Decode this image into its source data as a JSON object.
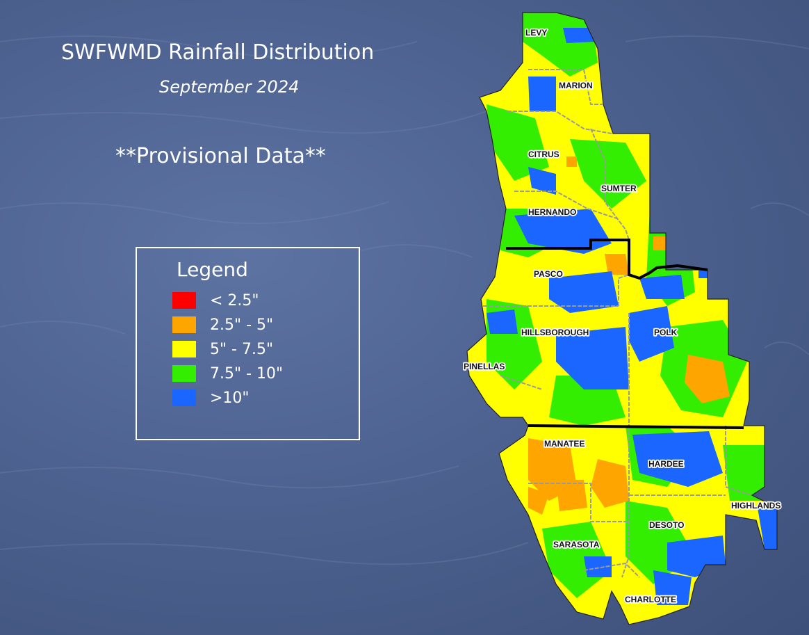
{
  "title": "SWFWMD Rainfall Distribution",
  "subtitle": "September 2024",
  "note": "**Provisional Data**",
  "legend": {
    "title": "Legend",
    "items": [
      {
        "label": "< 2.5\"",
        "color": "#ff0000"
      },
      {
        "label": "2.5\" - 5\"",
        "color": "#ffa500"
      },
      {
        "label": "5\" - 7.5\"",
        "color": "#ffff00"
      },
      {
        "label": "7.5\" - 10\"",
        "color": "#33ee00"
      },
      {
        "label": ">10\"",
        "color": "#1a66ff"
      }
    ]
  },
  "counties": [
    "LEVY",
    "MARION",
    "CITRUS",
    "SUMTER",
    "HERNANDO",
    "PASCO",
    "HILLSBOROUGH",
    "POLK",
    "PINELLAS",
    "MANATEE",
    "HARDEE",
    "HIGHLANDS",
    "DESOTO",
    "SARASOTA",
    "CHARLOTTE"
  ]
}
